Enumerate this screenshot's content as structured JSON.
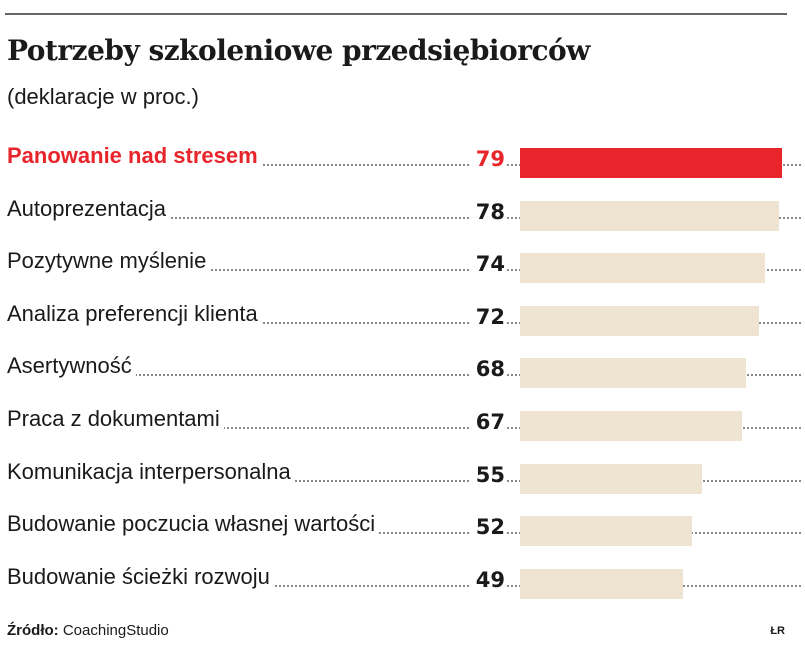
{
  "chart_data": {
    "type": "bar",
    "orientation": "horizontal",
    "title": "Potrzeby szkoleniowe przedsiębiorców",
    "subtitle": "(deklaracje w proc.)",
    "categories": [
      "Panowanie nad stresem",
      "Autoprezentacja",
      "Pozytywne myślenie",
      "Analiza preferencji klienta",
      "Asertywność",
      "Praca z dokumentami",
      "Komunikacja interpersonalna",
      "Budowanie poczucia własnej wartości",
      "Budowanie ścieżki rozwoju"
    ],
    "values": [
      79,
      78,
      74,
      72,
      68,
      67,
      55,
      52,
      49
    ],
    "highlight_index": 0,
    "xlim": [
      0,
      79
    ],
    "colors": {
      "highlight": "#e8252b",
      "bar": "#efe4d2",
      "text": "#1a1a1a"
    }
  },
  "footer": {
    "source_label": "Źródło:",
    "source_name": "CoachingStudio",
    "credit": "ŁR"
  }
}
